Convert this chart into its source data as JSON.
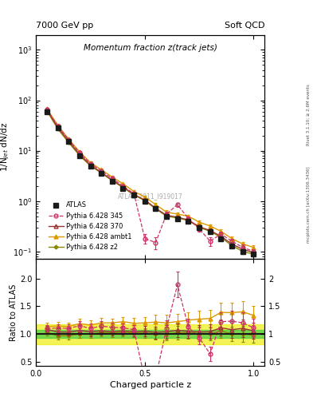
{
  "title_main": "Momentum fraction z(track jets)",
  "header_left": "7000 GeV pp",
  "header_right": "Soft QCD",
  "ylabel_main": "1/N$_{jet}$ dN/dz",
  "ylabel_ratio": "Ratio to ATLAS",
  "xlabel": "Charged particle z",
  "watermark": "ATLAS_2011_I919017",
  "right_label_top": "Rivet 3.1.10; ≥ 2.6M events",
  "right_label_bot": "mcplots.cern.ch [arXiv:1306.3436]",
  "ylim_main": [
    0.07,
    2000
  ],
  "ylim_ratio": [
    0.42,
    2.35
  ],
  "xlim": [
    0.0,
    1.05
  ],
  "colors": {
    "atlas": "#1a1a1a",
    "p345": "#cc3366",
    "p370": "#993333",
    "pambt1": "#dd9900",
    "pz2": "#888800"
  },
  "atlas_x": [
    0.05,
    0.1,
    0.15,
    0.2,
    0.25,
    0.3,
    0.35,
    0.4,
    0.45,
    0.5,
    0.55,
    0.6,
    0.65,
    0.7,
    0.75,
    0.8,
    0.85,
    0.9,
    0.95,
    1.0
  ],
  "atlas_y": [
    60,
    28,
    15,
    8,
    5,
    3.5,
    2.5,
    1.8,
    1.3,
    1.0,
    0.7,
    0.5,
    0.45,
    0.4,
    0.3,
    0.25,
    0.18,
    0.13,
    0.1,
    0.09
  ],
  "atlas_ey": [
    2,
    1.2,
    0.6,
    0.4,
    0.25,
    0.18,
    0.12,
    0.09,
    0.07,
    0.06,
    0.05,
    0.04,
    0.035,
    0.03,
    0.025,
    0.02,
    0.015,
    0.012,
    0.01,
    0.008
  ],
  "p345_x": [
    0.05,
    0.1,
    0.15,
    0.2,
    0.25,
    0.3,
    0.35,
    0.4,
    0.45,
    0.5,
    0.55,
    0.6,
    0.65,
    0.7,
    0.75,
    0.8,
    0.85,
    0.9,
    0.95,
    1.0
  ],
  "p345_y": [
    66,
    31,
    16.5,
    9.2,
    5.5,
    4.0,
    2.8,
    2.0,
    1.4,
    0.18,
    0.15,
    0.55,
    0.85,
    0.45,
    0.28,
    0.16,
    0.22,
    0.16,
    0.12,
    0.1
  ],
  "p345_ey": [
    3,
    1.5,
    0.8,
    0.5,
    0.3,
    0.2,
    0.14,
    0.1,
    0.08,
    0.04,
    0.04,
    0.06,
    0.08,
    0.05,
    0.03,
    0.03,
    0.025,
    0.02,
    0.015,
    0.012
  ],
  "p370_x": [
    0.05,
    0.1,
    0.15,
    0.2,
    0.25,
    0.3,
    0.35,
    0.4,
    0.45,
    0.5,
    0.55,
    0.6,
    0.65,
    0.7,
    0.75,
    0.8,
    0.85,
    0.9,
    0.95,
    1.0
  ],
  "p370_y": [
    65,
    29,
    15.5,
    8.5,
    5.2,
    3.7,
    2.6,
    1.9,
    1.35,
    1.05,
    0.72,
    0.52,
    0.48,
    0.42,
    0.31,
    0.26,
    0.2,
    0.14,
    0.11,
    0.095
  ],
  "p370_ey": [
    3,
    1.4,
    0.7,
    0.45,
    0.28,
    0.18,
    0.13,
    0.1,
    0.08,
    0.07,
    0.055,
    0.045,
    0.04,
    0.035,
    0.03,
    0.025,
    0.02,
    0.015,
    0.012,
    0.01
  ],
  "pambt1_x": [
    0.05,
    0.1,
    0.15,
    0.2,
    0.25,
    0.3,
    0.35,
    0.4,
    0.45,
    0.5,
    0.55,
    0.6,
    0.65,
    0.7,
    0.75,
    0.8,
    0.85,
    0.9,
    0.95,
    1.0
  ],
  "pambt1_y": [
    68,
    32,
    17,
    9.5,
    5.8,
    4.2,
    3.0,
    2.2,
    1.55,
    1.2,
    0.85,
    0.6,
    0.55,
    0.5,
    0.38,
    0.32,
    0.25,
    0.18,
    0.14,
    0.12
  ],
  "pambt1_ey": [
    3,
    1.5,
    0.8,
    0.5,
    0.3,
    0.2,
    0.14,
    0.11,
    0.09,
    0.08,
    0.065,
    0.055,
    0.048,
    0.04,
    0.033,
    0.027,
    0.022,
    0.016,
    0.013,
    0.011
  ],
  "pz2_x": [
    0.05,
    0.1,
    0.15,
    0.2,
    0.25,
    0.3,
    0.35,
    0.4,
    0.45,
    0.5,
    0.55,
    0.6,
    0.65,
    0.7,
    0.75,
    0.8,
    0.85,
    0.9,
    0.95,
    1.0
  ],
  "pz2_y": [
    62,
    27,
    14.5,
    8.0,
    5.0,
    3.6,
    2.55,
    1.85,
    1.32,
    1.02,
    0.7,
    0.5,
    0.46,
    0.41,
    0.3,
    0.25,
    0.19,
    0.13,
    0.1,
    0.088
  ],
  "pz2_ey": [
    3,
    1.3,
    0.7,
    0.43,
    0.27,
    0.18,
    0.13,
    0.09,
    0.07,
    0.06,
    0.055,
    0.045,
    0.04,
    0.035,
    0.028,
    0.022,
    0.018,
    0.013,
    0.011,
    0.009
  ],
  "band_x": [
    0.0,
    0.05,
    0.1,
    0.15,
    0.2,
    0.25,
    0.3,
    0.35,
    0.4,
    0.45,
    0.5,
    0.55,
    0.6,
    0.65,
    0.7,
    0.75,
    0.8,
    0.85,
    0.9,
    0.95,
    1.0,
    1.05
  ],
  "band_lo_g": [
    0.93,
    0.93,
    0.93,
    0.93,
    0.93,
    0.93,
    0.93,
    0.93,
    0.93,
    0.93,
    0.93,
    0.93,
    0.93,
    0.93,
    0.93,
    0.93,
    0.93,
    0.93,
    0.93,
    0.93,
    0.93,
    0.93
  ],
  "band_hi_g": [
    1.07,
    1.07,
    1.07,
    1.07,
    1.07,
    1.07,
    1.07,
    1.07,
    1.07,
    1.07,
    1.07,
    1.07,
    1.07,
    1.07,
    1.07,
    1.07,
    1.07,
    1.07,
    1.07,
    1.07,
    1.07,
    1.07
  ],
  "band_lo_y": [
    0.82,
    0.82,
    0.82,
    0.82,
    0.82,
    0.82,
    0.82,
    0.82,
    0.82,
    0.82,
    0.82,
    0.82,
    0.82,
    0.82,
    0.82,
    0.82,
    0.82,
    0.82,
    0.82,
    0.82,
    0.82,
    0.82
  ],
  "band_hi_y": [
    1.18,
    1.18,
    1.18,
    1.18,
    1.18,
    1.18,
    1.18,
    1.18,
    1.18,
    1.18,
    1.18,
    1.18,
    1.18,
    1.18,
    1.18,
    1.18,
    1.18,
    1.18,
    1.18,
    1.18,
    1.18,
    1.18
  ]
}
